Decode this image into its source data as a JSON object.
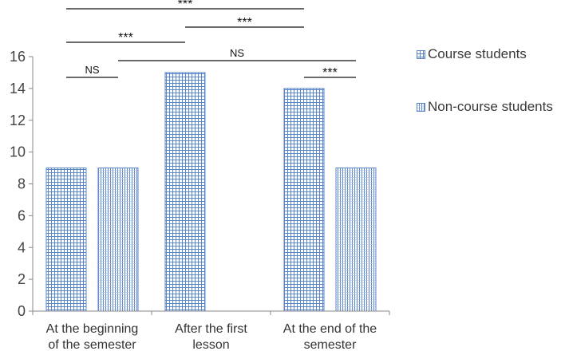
{
  "chart_data": {
    "type": "bar",
    "categories": [
      [
        "At the beginning",
        "of the semester"
      ],
      [
        "After the first",
        "lesson"
      ],
      [
        "At the end of the",
        "semester"
      ]
    ],
    "series": [
      {
        "name": "Course students",
        "values": [
          9,
          15,
          14
        ],
        "pattern": "grid",
        "color": "#5b86c9"
      },
      {
        "name": "Non-course students",
        "values": [
          9,
          null,
          9
        ],
        "pattern": "vertical-lines",
        "color": "#5b86c9"
      }
    ],
    "ylim": [
      0,
      16
    ],
    "yticks": [
      0,
      2,
      4,
      6,
      8,
      10,
      12,
      14,
      16
    ],
    "xlabel": "",
    "ylabel": "",
    "title": "",
    "legend": {
      "position": "right"
    },
    "significance": [
      {
        "label": "***",
        "from": {
          "category": 0,
          "series": 0
        },
        "to": {
          "category": 2,
          "series": 0
        },
        "level": 4
      },
      {
        "label": "***",
        "from": {
          "category": 1,
          "series": 0
        },
        "to": {
          "category": 2,
          "series": 0
        },
        "level": 3
      },
      {
        "label": "***",
        "from": {
          "category": 0,
          "series": 0
        },
        "to": {
          "category": 1,
          "series": 0
        },
        "level": 2
      },
      {
        "label": "NS",
        "from": {
          "category": 0,
          "series": 1
        },
        "to": {
          "category": 2,
          "series": 1
        },
        "level": 1
      },
      {
        "label": "***",
        "from": {
          "category": 2,
          "series": 0
        },
        "to": {
          "category": 2,
          "series": 1
        },
        "level": 0
      },
      {
        "label": "NS",
        "from": {
          "category": 0,
          "series": 0
        },
        "to": {
          "category": 0,
          "series": 1
        },
        "level": 0
      }
    ]
  }
}
